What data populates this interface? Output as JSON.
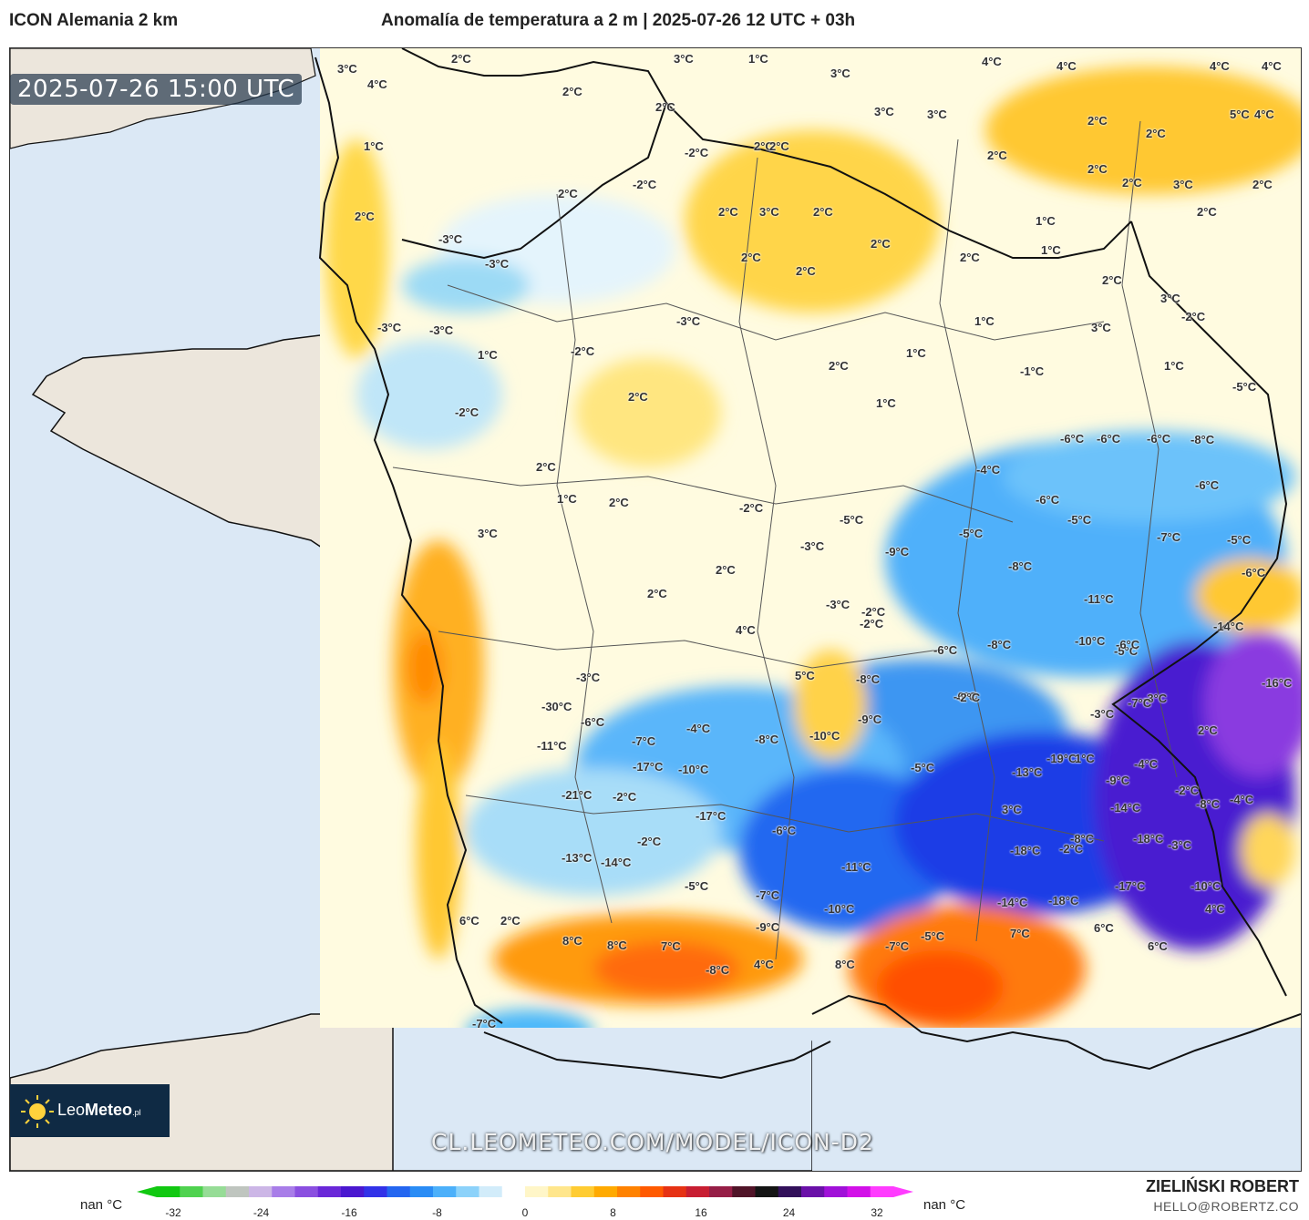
{
  "header": {
    "model_title": "ICON Alemania 2 km",
    "map_title": "Anomalía de temperatura a 2 m | 2025-07-26 12 UTC + 03h"
  },
  "map": {
    "timestamp": "2025-07-26 15:00 UTC",
    "watermark": "CL.LEOMETEO.COM/MODEL/ICON-D2",
    "logo": {
      "name_part1": "Leo",
      "name_part2": "Meteo",
      "suffix": ".pl"
    },
    "labels": [
      "3°C",
      "4°C",
      "2°C",
      "3°C",
      "1°C",
      "4°C",
      "3°C",
      "4°C",
      "4°C",
      "4°C",
      "2°C",
      "2°C",
      "1°C",
      "2°C",
      "4°C",
      "3°C",
      "3°C",
      "2°C",
      "5°C",
      "2°C",
      "2°C",
      "2°C",
      "-2°C",
      "2°C",
      "-2°C",
      "2°C",
      "2°C",
      "3°C",
      "3°C",
      "2°C",
      "1°C",
      "-3°C",
      "2°C",
      "2°C",
      "2°C",
      "2°C",
      "-3°C",
      "2°C",
      "2°C",
      "2°C",
      "1°C",
      "2°C",
      "-3°C",
      "2°C",
      "3°C",
      "3°C",
      "1°C",
      "-2°C",
      "1°C",
      "-3°C",
      "-2°C",
      "-1°C",
      "-3°C",
      "2°C",
      "1°C",
      "-5°C",
      "1°C",
      "-2°C",
      "1°C",
      "-6°C",
      "-6°C",
      "-6°C",
      "-8°C",
      "2°C",
      "2°C",
      "-4°C",
      "-6°C",
      "1°C",
      "2°C",
      "-2°C",
      "-6°C",
      "-5°C",
      "-5°C",
      "3°C",
      "-7°C",
      "-5°C",
      "-3°C",
      "-9°C",
      "-5°C",
      "-8°C",
      "2°C",
      "2°C",
      "-6°C",
      "-2°C",
      "-3°C",
      "-11°C",
      "-2°C",
      "4°C",
      "-6°C",
      "-8°C",
      "-10°C",
      "-5°C",
      "-14°C",
      "-6°C",
      "-2°C",
      "-6°C",
      "-3°C",
      "5°C",
      "-8°C",
      "-3°C",
      "-16°C",
      "-30°C",
      "-3°C",
      "-6°C",
      "-7°C",
      "-7°C",
      "-4°C",
      "-8°C",
      "-9°C",
      "-10°C",
      "2°C",
      "-19°C",
      "-11°C",
      "1°C",
      "-4°C",
      "-17°C",
      "-5°C",
      "-13°C",
      "-10°C",
      "-9°C",
      "-21°C",
      "-2°C",
      "-2°C",
      "-4°C",
      "-8°C",
      "3°C",
      "-14°C",
      "-17°C",
      "-6°C",
      "-8°C",
      "-18°C",
      "-13°C",
      "-2°C",
      "-3°C",
      "-14°C",
      "-18°C",
      "-2°C",
      "-11°C",
      "-5°C",
      "-7°C",
      "-18°C",
      "-17°C",
      "-10°C",
      "-10°C",
      "-14°C",
      "4°C",
      "6°C",
      "2°C",
      "-9°C",
      "6°C",
      "8°C",
      "8°C",
      "7°C",
      "-8°C",
      "6°C",
      "7°C",
      "-5°C",
      "4°C",
      "8°C",
      "-7°C",
      "-7°C"
    ]
  },
  "scale": {
    "left_nan": "nan °C",
    "right_nan": "nan °C",
    "ticks": [
      "-32",
      "-24",
      "-16",
      "-8",
      "0",
      "8",
      "16",
      "24",
      "32"
    ],
    "colors": [
      "#11c811",
      "#4fd24f",
      "#96dc96",
      "#bfc5bf",
      "#ccb6e6",
      "#a87de8",
      "#8a4fe0",
      "#6a28d8",
      "#4a18d0",
      "#3232e8",
      "#2466f0",
      "#2a8cf5",
      "#4cb0fa",
      "#8cd2fa",
      "#d2ecfa",
      "#ffffff",
      "#fff6c8",
      "#ffe68c",
      "#ffcc32",
      "#ffaa00",
      "#ff8200",
      "#ff5a00",
      "#e63214",
      "#c81e32",
      "#961e46",
      "#501428",
      "#141414",
      "#32105a",
      "#6a10a8",
      "#a010d8",
      "#d210e8",
      "#ff3cff"
    ]
  },
  "author": {
    "name": "ZIELIŃSKI ROBERT",
    "email": "HELLO@ROBERTZ.CO"
  }
}
